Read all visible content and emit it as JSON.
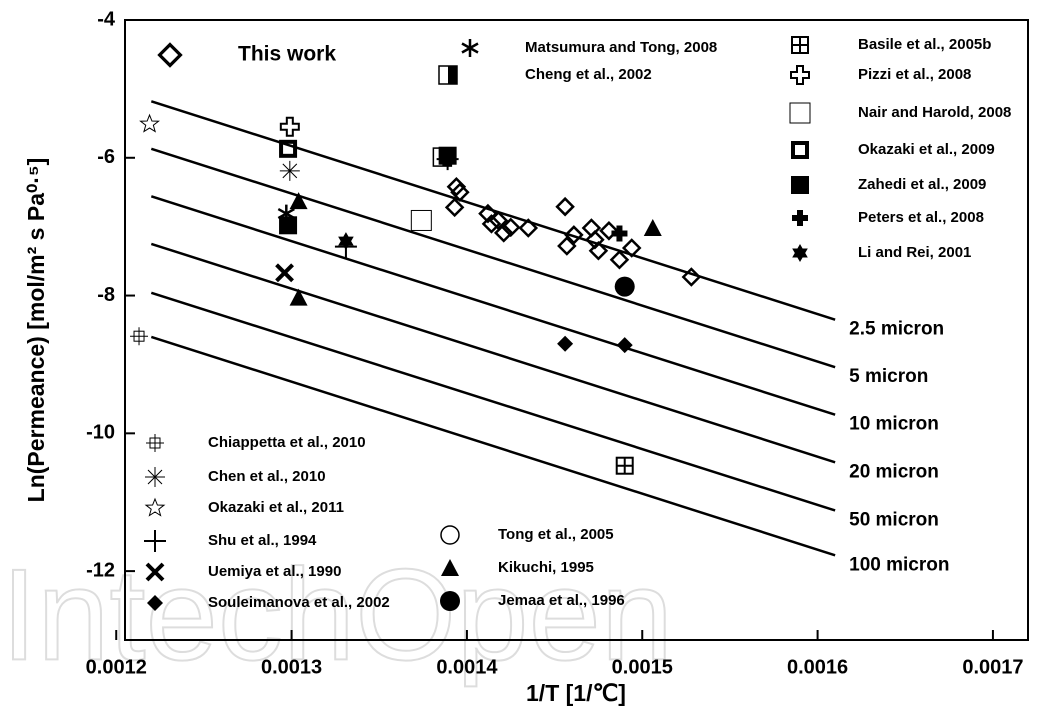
{
  "chart_data": {
    "type": "scatter",
    "x_label": "1/T [1/℃]",
    "y_label": "Ln(Permeance) [mol/m² s Pa⁰·⁵]",
    "watermark": "IntechOpen",
    "xlim": [
      0.001205,
      0.00172
    ],
    "xticks": [
      0.0012,
      0.0013,
      0.0014,
      0.0015,
      0.0016,
      0.0017
    ],
    "ylim": [
      -13,
      -4
    ],
    "yticks": [
      -4,
      -6,
      -8,
      -10,
      -12
    ],
    "lines": [
      {
        "name": "2.5 micron",
        "x": [
          0.00122,
          0.00161
        ],
        "values": [
          -5.18,
          -8.35
        ]
      },
      {
        "name": "5 micron",
        "x": [
          0.00122,
          0.00161
        ],
        "values": [
          -5.87,
          -9.04
        ]
      },
      {
        "name": "10 micron",
        "x": [
          0.00122,
          0.00161
        ],
        "values": [
          -6.56,
          -9.73
        ]
      },
      {
        "name": "20 micron",
        "x": [
          0.00122,
          0.00161
        ],
        "values": [
          -7.25,
          -10.42
        ]
      },
      {
        "name": "50 micron",
        "x": [
          0.00122,
          0.00161
        ],
        "values": [
          -7.96,
          -11.12
        ]
      },
      {
        "name": "100 micron",
        "x": [
          0.00122,
          0.00161
        ],
        "values": [
          -8.6,
          -11.77
        ]
      }
    ],
    "series": [
      {
        "name": "This work",
        "marker": "diamond-open",
        "color": "#000",
        "x": [
          0.001394,
          0.001396,
          0.001393,
          0.001412,
          0.001414,
          0.001418,
          0.001421,
          0.001425,
          0.001435,
          0.001456,
          0.001457,
          0.001461,
          0.001471,
          0.001473,
          0.001475,
          0.001481,
          0.001487,
          0.001494,
          0.001528
        ],
        "values": [
          -6.42,
          -6.5,
          -6.72,
          -6.81,
          -6.96,
          -6.91,
          -7.09,
          -7.01,
          -7.02,
          -6.71,
          -7.28,
          -7.12,
          -7.02,
          -7.19,
          -7.35,
          -7.06,
          -7.48,
          -7.31,
          -7.73
        ]
      },
      {
        "name": "Matsumura and Tong, 2008",
        "marker": "asterisk-bold",
        "color": "#000",
        "x": [
          0.001297
        ],
        "values": [
          -6.81
        ]
      },
      {
        "name": "Cheng et al., 2002",
        "marker": "square-half",
        "color": "#000",
        "x": [
          0.001386
        ],
        "values": [
          -5.99
        ]
      },
      {
        "name": "Basile et al., 2005b",
        "marker": "square-plus",
        "color": "#000",
        "x": [
          0.00149
        ],
        "values": [
          -10.47
        ]
      },
      {
        "name": "Pizzi et al., 2008",
        "marker": "cross-open",
        "color": "#000",
        "x": [
          0.001299
        ],
        "values": [
          -5.55
        ]
      },
      {
        "name": "Nair and Harold, 2008",
        "marker": "square-open",
        "color": "#000",
        "x": [
          0.001374
        ],
        "values": [
          -6.91
        ]
      },
      {
        "name": "Okazaki et al., 2009",
        "marker": "square-thick",
        "color": "#000",
        "x": [
          0.001298
        ],
        "values": [
          -5.87
        ]
      },
      {
        "name": "Zahedi et al., 2009",
        "marker": "square-filled",
        "color": "#000",
        "x": [
          0.001298,
          0.001389
        ],
        "values": [
          -6.98,
          -5.97
        ]
      },
      {
        "name": "Peters et al., 2008",
        "marker": "cross-filled",
        "color": "#000",
        "x": [
          0.001487
        ],
        "values": [
          -7.1
        ]
      },
      {
        "name": "Li and Rei, 2001",
        "marker": "star-filled",
        "color": "#000",
        "x": [
          0.001331
        ],
        "values": [
          -7.21
        ]
      },
      {
        "name": "Chiappetta et al., 2010",
        "marker": "square-plus-small",
        "color": "#000",
        "x": [
          0.001213
        ],
        "values": [
          -8.59
        ]
      },
      {
        "name": "Chen et al., 2010",
        "marker": "asterisk-thin",
        "color": "#000",
        "x": [
          0.001299
        ],
        "values": [
          -6.19
        ]
      },
      {
        "name": "Okazaki et al., 2011",
        "marker": "star-open",
        "color": "#000",
        "x": [
          0.001219
        ],
        "values": [
          -5.51
        ]
      },
      {
        "name": "Shu et al., 1994",
        "marker": "plus",
        "color": "#000",
        "x": [
          0.001331,
          0.001389
        ],
        "values": [
          -7.29,
          -6.02
        ]
      },
      {
        "name": "Uemiya et al., 1990",
        "marker": "x",
        "color": "#000",
        "x": [
          0.001296
        ],
        "values": [
          -7.67
        ]
      },
      {
        "name": "Souleimanova et al., 2002",
        "marker": "diamond-filled",
        "color": "#000",
        "x": [
          0.001456,
          0.00149
        ],
        "values": [
          -8.7,
          -8.72
        ]
      },
      {
        "name": "Tong et al., 2005",
        "marker": "circle-open",
        "color": "#000",
        "x": [],
        "values": []
      },
      {
        "name": "Kikuchi, 1995",
        "marker": "triangle-filled",
        "color": "#000",
        "x": [
          0.001304,
          0.001304,
          0.001506
        ],
        "values": [
          -6.63,
          -8.03,
          -7.02
        ]
      },
      {
        "name": "Jemaa et al., 1996",
        "marker": "circle-filled",
        "color": "#000",
        "x": [
          0.00149
        ],
        "values": [
          -7.87
        ]
      }
    ]
  }
}
